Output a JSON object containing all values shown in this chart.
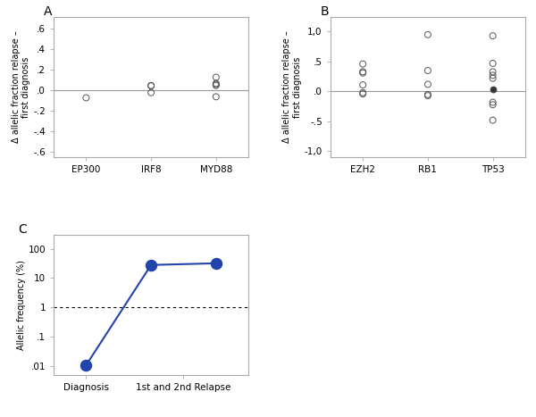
{
  "panel_A": {
    "label": "A",
    "categories": [
      "EP300",
      "IRF8",
      "MYD88"
    ],
    "data": {
      "EP300": [
        -0.07
      ],
      "IRF8": [
        0.05,
        0.045,
        -0.02
      ],
      "MYD88": [
        0.13,
        0.07,
        0.06,
        0.05,
        -0.06
      ]
    },
    "ylim": [
      -0.65,
      0.72
    ],
    "yticks": [
      -0.6,
      -0.4,
      -0.2,
      0.0,
      0.2,
      0.4,
      0.6
    ],
    "yticklabels": [
      "-.6",
      "-.4",
      "-.2",
      ".0",
      ".2",
      ".4",
      ".6"
    ],
    "ylabel": "Δ allelic fraction relapse –\nfirst diagnosis"
  },
  "panel_B": {
    "label": "B",
    "categories": [
      "EZH2",
      "RB1",
      "TP53"
    ],
    "data": {
      "EZH2": [
        0.46,
        0.33,
        0.31,
        0.11,
        -0.02,
        -0.04
      ],
      "RB1": [
        0.95,
        0.35,
        0.12,
        -0.05,
        -0.07
      ],
      "TP53": [
        0.93,
        0.47,
        0.33,
        0.27,
        0.22,
        0.04,
        -0.18,
        -0.22,
        -0.48
      ]
    },
    "filled_points": {
      "TP53": [
        0.04
      ]
    },
    "ylim": [
      -1.1,
      1.25
    ],
    "yticks": [
      -1.0,
      -0.5,
      0.0,
      0.5,
      1.0
    ],
    "yticklabels": [
      "-1,0",
      "-.5",
      ".0",
      ".5",
      "1,0"
    ],
    "ylabel": "Δ allelic fraction relapse –\nfirst diagnosis"
  },
  "panel_C": {
    "label": "C",
    "x": [
      0,
      1,
      2
    ],
    "y": [
      0.011,
      28,
      32
    ],
    "ylabel": "Allelic frequency (%)",
    "yticks": [
      0.01,
      0.1,
      1,
      10,
      100
    ],
    "yticklabels": [
      ".01",
      ".1",
      "1",
      "10",
      "100"
    ],
    "hline_y": 1.0,
    "color": "#2244aa",
    "xlim": [
      -0.5,
      2.5
    ],
    "ylim_log": [
      0.005,
      300
    ]
  },
  "open_circle_color": "none",
  "open_circle_edge": "#555555",
  "filled_circle_color": "#333333",
  "marker_size": 5,
  "line_color": "#999999",
  "spine_color": "#aaaaaa"
}
